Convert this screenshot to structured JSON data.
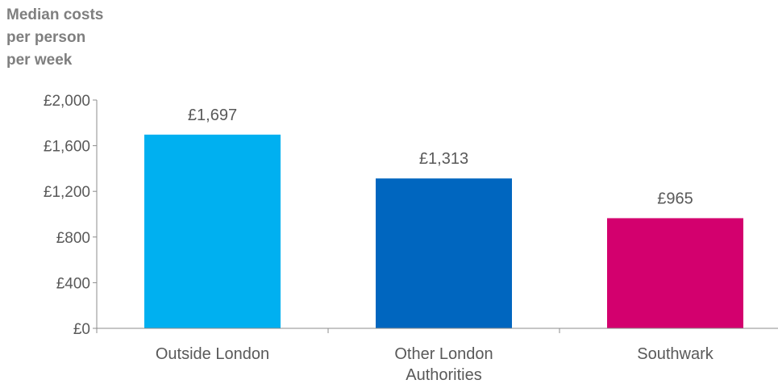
{
  "chart_data": {
    "type": "bar",
    "title_lines": [
      "Median costs",
      "per person",
      "per week"
    ],
    "categories": [
      [
        "Outside London"
      ],
      [
        "Other London",
        "Authorities"
      ],
      [
        "Southwark"
      ]
    ],
    "values": [
      1697,
      1313,
      965
    ],
    "data_labels": [
      "£1,697",
      "£1,313",
      "£965"
    ],
    "colors": [
      "#00b0f0",
      "#0066bf",
      "#d3006e"
    ],
    "ylim": [
      0,
      2000
    ],
    "yticks": [
      0,
      400,
      800,
      1200,
      1600,
      2000
    ],
    "ytick_labels": [
      "£0",
      "£400",
      "£800",
      "£1,200",
      "£1,600",
      "£2,000"
    ],
    "grid": false,
    "legend": "none"
  }
}
